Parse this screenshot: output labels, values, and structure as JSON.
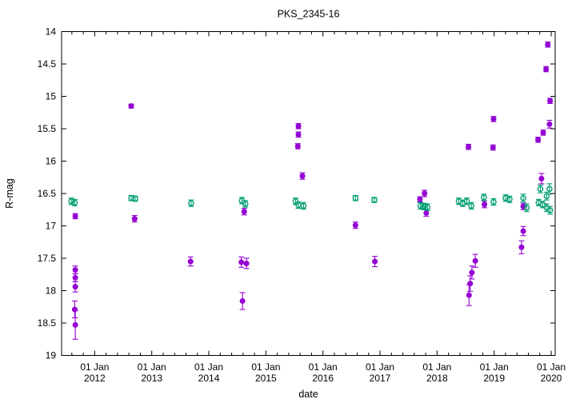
{
  "window": {
    "title": "PKS_2345-16"
  },
  "colors": {
    "background": "#ffffff",
    "axis": "#000000",
    "series_target": "#9400d3",
    "series_comparison": "#009e73"
  },
  "chart_data": {
    "type": "scatter",
    "title": "PKS_2345-16",
    "xlabel": "date",
    "ylabel": "R-mag",
    "grid": false,
    "legend": "none",
    "x_axis": {
      "min": 2011.42,
      "max": 2020.07,
      "ticks": [
        {
          "year": 2012,
          "label_top": "01 Jan",
          "label_bottom": "2012"
        },
        {
          "year": 2013,
          "label_top": "01 Jan",
          "label_bottom": "2013"
        },
        {
          "year": 2014,
          "label_top": "01 Jan",
          "label_bottom": "2014"
        },
        {
          "year": 2015,
          "label_top": "01 Jan",
          "label_bottom": "2015"
        },
        {
          "year": 2016,
          "label_top": "01 Jan",
          "label_bottom": "2016"
        },
        {
          "year": 2017,
          "label_top": "01 Jan",
          "label_bottom": "2017"
        },
        {
          "year": 2018,
          "label_top": "01 Jan",
          "label_bottom": "2018"
        },
        {
          "year": 2019,
          "label_top": "01 Jan",
          "label_bottom": "2019"
        },
        {
          "year": 2020,
          "label_top": "01 Jan",
          "label_bottom": "2020"
        }
      ],
      "minor_tick_step": 0.2
    },
    "y_axis": {
      "min": 14,
      "max": 19,
      "inverted_magnitude_scale": true,
      "ticks": [
        14,
        14.5,
        15,
        15.5,
        16,
        16.5,
        17,
        17.5,
        18,
        18.5,
        19
      ],
      "tick_labels": [
        "14",
        "14.5",
        "15",
        "15.5",
        "16",
        "16.5",
        "17",
        "17.5",
        "18",
        "18.5",
        "19"
      ]
    },
    "series": [
      {
        "name": "target-photometry",
        "marker": "filled-circle",
        "color": "#9400d3",
        "points_format": [
          "decimal_year",
          "r_mag",
          "error"
        ],
        "points": [
          [
            2011.66,
            16.85,
            0.04
          ],
          [
            2011.66,
            17.68,
            0.06
          ],
          [
            2011.66,
            17.8,
            0.06
          ],
          [
            2011.66,
            17.94,
            0.08
          ],
          [
            2011.65,
            18.29,
            0.13
          ],
          [
            2011.66,
            18.53,
            0.22
          ],
          [
            2012.64,
            15.15,
            0.03
          ],
          [
            2012.7,
            16.89,
            0.05
          ],
          [
            2013.68,
            17.55,
            0.07
          ],
          [
            2014.62,
            16.78,
            0.05
          ],
          [
            2014.57,
            17.56,
            0.08
          ],
          [
            2014.66,
            17.58,
            0.08
          ],
          [
            2014.59,
            18.16,
            0.13
          ],
          [
            2015.57,
            15.46,
            0.04
          ],
          [
            2015.57,
            15.59,
            0.04
          ],
          [
            2015.56,
            15.77,
            0.04
          ],
          [
            2015.64,
            16.23,
            0.05
          ],
          [
            2016.57,
            16.99,
            0.05
          ],
          [
            2016.91,
            17.55,
            0.08
          ],
          [
            2017.78,
            16.5,
            0.05
          ],
          [
            2017.7,
            16.59,
            0.04
          ],
          [
            2017.81,
            16.8,
            0.05
          ],
          [
            2018.55,
            15.78,
            0.04
          ],
          [
            2018.67,
            17.54,
            0.1
          ],
          [
            2018.61,
            17.72,
            0.1
          ],
          [
            2018.58,
            17.89,
            0.12
          ],
          [
            2018.56,
            18.07,
            0.16
          ],
          [
            2018.83,
            16.67,
            0.05
          ],
          [
            2018.98,
            15.79,
            0.04
          ],
          [
            2018.99,
            15.35,
            0.04
          ],
          [
            2019.51,
            16.7,
            0.05
          ],
          [
            2019.51,
            17.08,
            0.07
          ],
          [
            2019.48,
            17.33,
            0.1
          ],
          [
            2019.77,
            15.67,
            0.04
          ],
          [
            2019.86,
            15.56,
            0.04
          ],
          [
            2019.97,
            15.43,
            0.06
          ],
          [
            2019.83,
            16.27,
            0.08
          ],
          [
            2019.91,
            14.58,
            0.04
          ],
          [
            2019.94,
            14.2,
            0.04
          ],
          [
            2019.98,
            15.07,
            0.04
          ]
        ]
      },
      {
        "name": "comparison-star-photometry",
        "marker": "open-circle",
        "color": "#009e73",
        "points_format": [
          "decimal_year",
          "r_mag",
          "error"
        ],
        "points": [
          [
            2011.59,
            16.62,
            0.05
          ],
          [
            2011.65,
            16.64,
            0.05
          ],
          [
            2012.64,
            16.57,
            0.04
          ],
          [
            2012.71,
            16.58,
            0.04
          ],
          [
            2013.69,
            16.65,
            0.05
          ],
          [
            2014.58,
            16.61,
            0.05
          ],
          [
            2014.64,
            16.66,
            0.05
          ],
          [
            2015.52,
            16.62,
            0.05
          ],
          [
            2015.57,
            16.68,
            0.05
          ],
          [
            2015.66,
            16.69,
            0.05
          ],
          [
            2016.57,
            16.57,
            0.04
          ],
          [
            2016.9,
            16.6,
            0.04
          ],
          [
            2017.71,
            16.69,
            0.05
          ],
          [
            2017.77,
            16.7,
            0.05
          ],
          [
            2017.83,
            16.71,
            0.05
          ],
          [
            2018.38,
            16.62,
            0.05
          ],
          [
            2018.45,
            16.65,
            0.05
          ],
          [
            2018.52,
            16.62,
            0.05
          ],
          [
            2018.6,
            16.69,
            0.05
          ],
          [
            2018.82,
            16.56,
            0.05
          ],
          [
            2018.99,
            16.63,
            0.05
          ],
          [
            2019.2,
            16.57,
            0.05
          ],
          [
            2019.27,
            16.59,
            0.05
          ],
          [
            2019.51,
            16.57,
            0.06
          ],
          [
            2019.57,
            16.72,
            0.06
          ],
          [
            2019.78,
            16.64,
            0.05
          ],
          [
            2019.81,
            16.43,
            0.06
          ],
          [
            2019.85,
            16.67,
            0.05
          ],
          [
            2019.92,
            16.54,
            0.06
          ],
          [
            2019.92,
            16.72,
            0.06
          ],
          [
            2019.97,
            16.43,
            0.08
          ],
          [
            2019.98,
            16.76,
            0.06
          ]
        ]
      }
    ]
  }
}
